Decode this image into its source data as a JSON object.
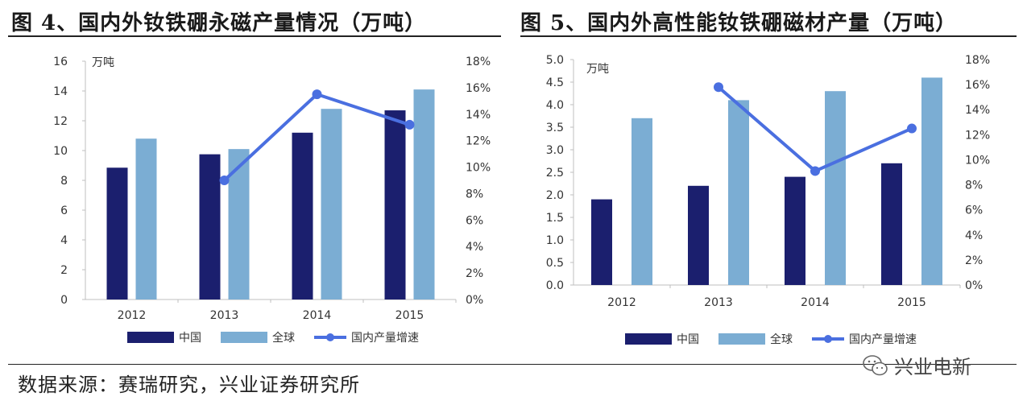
{
  "figure1": {
    "title": "图 4、国内外钕铁硼永磁产量情况（万吨）"
  },
  "figure2": {
    "title": "图 5、国内外高性能钕铁硼磁材产量（万吨）"
  },
  "source": "数据来源：赛瑞研究，兴业证券研究所",
  "watermark": {
    "text": "兴业电新",
    "icon": "wechat-icon"
  },
  "colors": {
    "china": "#1b1f6e",
    "global": "#7badd3",
    "growth": "#4a6fe0",
    "axis": "#bfbfbf"
  },
  "chart_data": [
    {
      "type": "bar",
      "categories": [
        "2012",
        "2013",
        "2014",
        "2015"
      ],
      "unit_label": "万吨",
      "ylim": [
        0,
        16
      ],
      "yticks": [
        0,
        2,
        4,
        6,
        8,
        10,
        12,
        14,
        16
      ],
      "y2lim": [
        0,
        0.18
      ],
      "y2ticks": [
        "0%",
        "2%",
        "4%",
        "6%",
        "8%",
        "10%",
        "12%",
        "14%",
        "16%",
        "18%"
      ],
      "series": [
        {
          "name": "中国",
          "kind": "bar",
          "values": [
            8.85,
            9.75,
            11.2,
            12.7
          ]
        },
        {
          "name": "全球",
          "kind": "bar",
          "values": [
            10.8,
            10.1,
            12.8,
            14.1
          ]
        },
        {
          "name": "国内产量增速",
          "kind": "line",
          "axis": "right",
          "values": [
            null,
            0.09,
            0.155,
            0.132
          ]
        }
      ]
    },
    {
      "type": "bar",
      "categories": [
        "2012",
        "2013",
        "2014",
        "2015"
      ],
      "unit_label": "万吨",
      "ylim": [
        0,
        5
      ],
      "yticks": [
        "0.0",
        "0.5",
        "1.0",
        "1.5",
        "2.0",
        "2.5",
        "3.0",
        "3.5",
        "4.0",
        "4.5",
        "5.0"
      ],
      "y2lim": [
        0,
        0.18
      ],
      "y2ticks": [
        "0%",
        "2%",
        "4%",
        "6%",
        "8%",
        "10%",
        "12%",
        "14%",
        "16%",
        "18%"
      ],
      "series": [
        {
          "name": "中国",
          "kind": "bar",
          "values": [
            1.9,
            2.2,
            2.4,
            2.7
          ]
        },
        {
          "name": "全球",
          "kind": "bar",
          "values": [
            3.7,
            4.1,
            4.3,
            4.6
          ]
        },
        {
          "name": "国内产量增速",
          "kind": "line",
          "axis": "right",
          "values": [
            null,
            0.158,
            0.091,
            0.125
          ]
        }
      ]
    }
  ]
}
